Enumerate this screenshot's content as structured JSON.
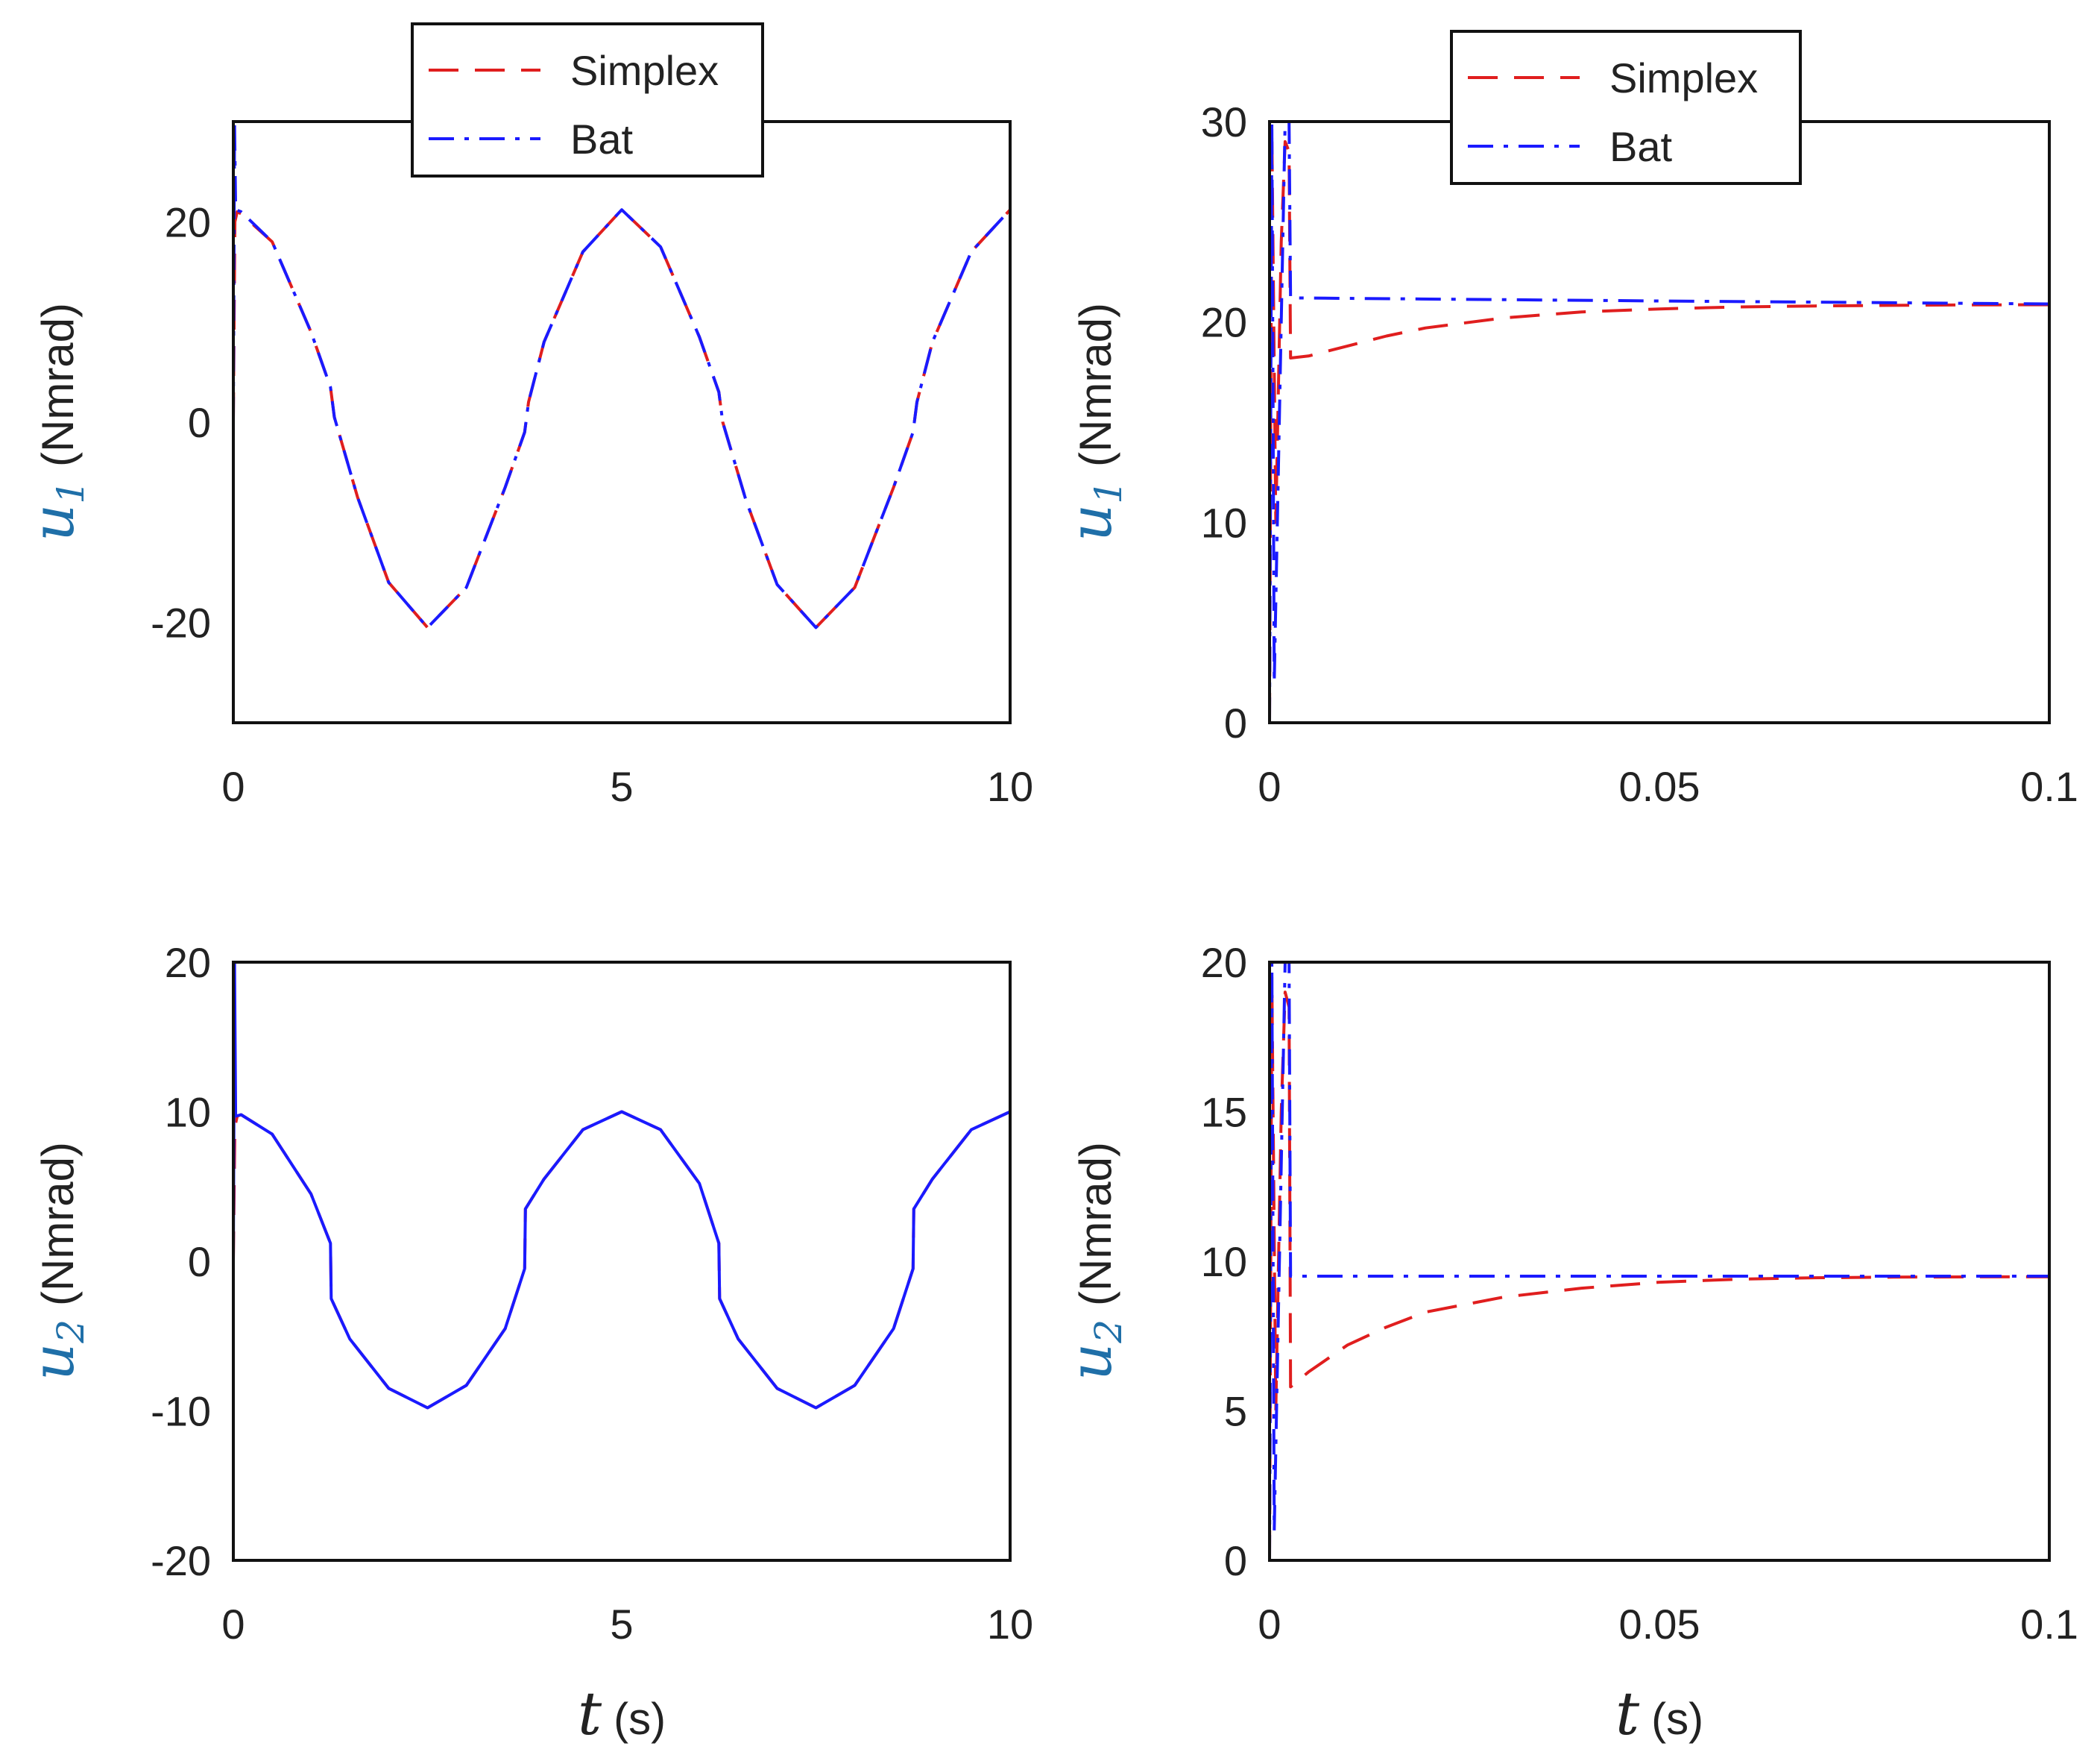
{
  "chart_data": [
    {
      "id": "u1-full",
      "type": "line",
      "xlim": [
        0,
        10
      ],
      "ylim": [
        -30,
        30
      ],
      "xticks": [
        "0",
        "5",
        "10"
      ],
      "yticks": [
        "-20",
        "0",
        "20"
      ],
      "ylabel": {
        "symbol": "u",
        "subscript": "1",
        "unit": "(Nmrad)"
      },
      "xlabel": null,
      "legend": {
        "position": "top-center",
        "entries": [
          "Simplex",
          "Bat"
        ]
      },
      "series": [
        {
          "name": "Simplex",
          "color": "#e01e1e",
          "style": "dashed",
          "x": [
            0,
            0.02,
            0.05,
            0.1,
            0.5,
            1.0,
            1.25,
            1.3,
            1.6,
            2.0,
            2.5,
            3.0,
            3.5,
            3.75,
            3.8,
            4.0,
            4.5,
            5.0,
            5.5,
            6.0,
            6.25,
            6.3,
            6.6,
            7.0,
            7.5,
            8.0,
            8.5,
            8.75,
            8.8,
            9.0,
            9.5,
            10.0
          ],
          "y": [
            0,
            20,
            21,
            20.8,
            18,
            9,
            3.5,
            0.5,
            -7.5,
            -16,
            -20.5,
            -16.5,
            -6.5,
            -1,
            2,
            8,
            17,
            21.2,
            17.5,
            8.5,
            3,
            0,
            -7.8,
            -16.2,
            -20.5,
            -16.5,
            -6.5,
            -1,
            2,
            8,
            17,
            21.2
          ]
        },
        {
          "name": "Bat",
          "color": "#1a1aff",
          "style": "dashdot",
          "x": [
            0,
            0.015,
            0.03,
            0.1,
            0.5,
            1.0,
            1.25,
            1.3,
            1.6,
            2.0,
            2.5,
            3.0,
            3.5,
            3.75,
            3.8,
            4.0,
            4.5,
            5.0,
            5.5,
            6.0,
            6.25,
            6.3,
            6.6,
            7.0,
            7.5,
            8.0,
            8.5,
            8.75,
            8.8,
            9.0,
            9.5,
            10.0
          ],
          "y": [
            0,
            30,
            21.2,
            21,
            18,
            9,
            3.5,
            0.5,
            -7.5,
            -16,
            -20.5,
            -16.5,
            -6.5,
            -1,
            2,
            8,
            17,
            21.2,
            17.5,
            8.5,
            3,
            0,
            -7.8,
            -16.2,
            -20.5,
            -16.5,
            -6.5,
            -1,
            2,
            8,
            17,
            21.2
          ]
        }
      ]
    },
    {
      "id": "u1-zoom",
      "type": "line",
      "xlim": [
        0,
        0.1
      ],
      "ylim": [
        0,
        30
      ],
      "xticks": [
        "0",
        "0.05",
        "0.1"
      ],
      "yticks": [
        "0",
        "10",
        "20",
        "30"
      ],
      "ylabel": {
        "symbol": "u",
        "subscript": "1",
        "unit": "(Nmrad)"
      },
      "xlabel": null,
      "legend": {
        "position": "top-center",
        "entries": [
          "Simplex",
          "Bat"
        ]
      },
      "series": [
        {
          "name": "Simplex",
          "color": "#e01e1e",
          "style": "dashed",
          "x": [
            0,
            0.0003,
            0.0008,
            0.0015,
            0.002,
            0.0025,
            0.0027,
            0.005,
            0.01,
            0.015,
            0.02,
            0.03,
            0.04,
            0.05,
            0.06,
            0.07,
            0.08,
            0.09,
            0.1
          ],
          "y": [
            0,
            29.5,
            10,
            24,
            29,
            28.5,
            18.2,
            18.3,
            18.8,
            19.3,
            19.7,
            20.2,
            20.5,
            20.65,
            20.75,
            20.8,
            20.83,
            20.85,
            20.86
          ]
        },
        {
          "name": "Bat",
          "color": "#1a1aff",
          "style": "dashdot",
          "x": [
            0,
            0.0003,
            0.0006,
            0.002,
            0.0025,
            0.0027,
            0.05,
            0.1
          ],
          "y": [
            0,
            30,
            2,
            30,
            30,
            21.2,
            21.05,
            20.9
          ]
        }
      ]
    },
    {
      "id": "u2-full",
      "type": "line",
      "xlim": [
        0,
        10
      ],
      "ylim": [
        -20,
        20
      ],
      "xticks": [
        "0",
        "5",
        "10"
      ],
      "yticks": [
        "-20",
        "-10",
        "0",
        "10",
        "20"
      ],
      "ylabel": {
        "symbol": "u",
        "subscript": "2",
        "unit": "(Nmrad)"
      },
      "xlabel": {
        "symbol": "t",
        "unit": "(s)"
      },
      "legend": null,
      "series": [
        {
          "name": "Simplex",
          "color": "#e01e1e",
          "style": "dashed",
          "x": [
            0,
            0.02,
            0.05,
            0.1,
            0.5,
            1.0,
            1.25,
            1.26,
            1.5,
            2.0,
            2.5,
            3.0,
            3.5,
            3.75,
            3.76,
            4.0,
            4.5,
            5.0,
            5.5,
            6.0,
            6.25,
            6.26,
            6.5,
            7.0,
            7.5,
            8.0,
            8.5,
            8.75,
            8.76,
            9.0,
            9.5,
            10.0
          ],
          "y": [
            0,
            9,
            9.7,
            9.8,
            8.5,
            4.5,
            1.2,
            -2.5,
            -5.2,
            -8.5,
            -9.8,
            -8.3,
            -4.5,
            -0.5,
            3.5,
            5.5,
            8.8,
            10.0,
            8.8,
            5.2,
            1.2,
            -2.5,
            -5.2,
            -8.5,
            -9.8,
            -8.3,
            -4.5,
            -0.5,
            3.5,
            5.5,
            8.8,
            10.0
          ]
        },
        {
          "name": "Bat",
          "color": "#1a1aff",
          "style": "solid",
          "x": [
            0,
            0.015,
            0.03,
            0.1,
            0.5,
            1.0,
            1.25,
            1.26,
            1.5,
            2.0,
            2.5,
            3.0,
            3.5,
            3.75,
            3.76,
            4.0,
            4.5,
            5.0,
            5.5,
            6.0,
            6.25,
            6.26,
            6.5,
            7.0,
            7.5,
            8.0,
            8.5,
            8.75,
            8.76,
            9.0,
            9.5,
            10.0
          ],
          "y": [
            0,
            20,
            9.7,
            9.8,
            8.5,
            4.5,
            1.2,
            -2.5,
            -5.2,
            -8.5,
            -9.8,
            -8.3,
            -4.5,
            -0.5,
            3.5,
            5.5,
            8.8,
            10.0,
            8.8,
            5.2,
            1.2,
            -2.5,
            -5.2,
            -8.5,
            -9.8,
            -8.3,
            -4.5,
            -0.5,
            3.5,
            5.5,
            8.8,
            10.0
          ]
        }
      ]
    },
    {
      "id": "u2-zoom",
      "type": "line",
      "xlim": [
        0,
        0.1
      ],
      "ylim": [
        0,
        20
      ],
      "xticks": [
        "0",
        "0.05",
        "0.1"
      ],
      "yticks": [
        "0",
        "5",
        "10",
        "15",
        "20"
      ],
      "ylabel": {
        "symbol": "u",
        "subscript": "2",
        "unit": "(Nmrad)"
      },
      "xlabel": {
        "symbol": "t",
        "unit": "(s)"
      },
      "legend": null,
      "series": [
        {
          "name": "Simplex",
          "color": "#e01e1e",
          "style": "dashed",
          "x": [
            0,
            0.0003,
            0.0008,
            0.0015,
            0.002,
            0.0025,
            0.0027,
            0.005,
            0.01,
            0.015,
            0.02,
            0.03,
            0.04,
            0.05,
            0.06,
            0.07,
            0.08,
            0.09,
            0.1
          ],
          "y": [
            0,
            19.5,
            5,
            15,
            19,
            18.5,
            5.8,
            6.3,
            7.2,
            7.8,
            8.3,
            8.8,
            9.1,
            9.3,
            9.4,
            9.45,
            9.47,
            9.48,
            9.48
          ]
        },
        {
          "name": "Bat",
          "color": "#1a1aff",
          "style": "dashdot",
          "x": [
            0,
            0.0003,
            0.0006,
            0.002,
            0.0025,
            0.0027,
            0.05,
            0.1
          ],
          "y": [
            0,
            20,
            1,
            20,
            20,
            9.5,
            9.5,
            9.5
          ]
        }
      ]
    }
  ]
}
